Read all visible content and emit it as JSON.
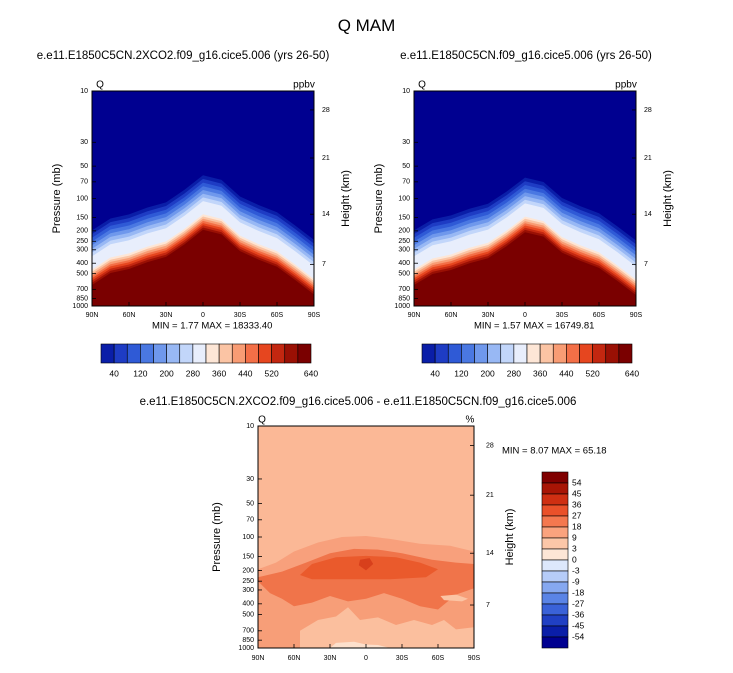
{
  "figure": {
    "title": "Q MAM"
  },
  "colors": {
    "background": "#ffffff",
    "abs_scale": [
      "#000090",
      "#0a1ea8",
      "#1e3cc4",
      "#2f5ad6",
      "#4a78e2",
      "#6f98ec",
      "#98b8f4",
      "#c2d6fa",
      "#e8eefc",
      "#fde6d6",
      "#fbc4a4",
      "#f89c74",
      "#f36f47",
      "#e6461f",
      "#c32710",
      "#9a1004",
      "#7a0000"
    ],
    "diff_scale": [
      "#000090",
      "#0a1ea8",
      "#2040c4",
      "#3a62d8",
      "#5a84e6",
      "#86a8f0",
      "#b6ccf8",
      "#dde8fc",
      "#fde6d6",
      "#fcc7a8",
      "#faa37e",
      "#f4784f",
      "#ea512a",
      "#cf2f12",
      "#a81505",
      "#800000"
    ]
  },
  "chart_data": [
    {
      "type": "heatmap",
      "name": "left-panel",
      "subtitle": "e.e11.E1850C5CN.2XCO2.f09_g16.cice5.006 (yrs 26-50)",
      "corner_left": "Q",
      "corner_right": "ppbv",
      "ylabel": "Pressure (mb)",
      "y2label": "Height (km)",
      "x_ticks": [
        "90N",
        "60N",
        "30N",
        "0",
        "30S",
        "60S",
        "90S"
      ],
      "y_ticks": [
        "10",
        "30",
        "50",
        "70",
        "100",
        "150",
        "200",
        "250",
        "300",
        "400",
        "500",
        "700",
        "850",
        "1000"
      ],
      "y2_ticks": [
        "28",
        "21",
        "14",
        "7"
      ],
      "stats": {
        "min_label": "MIN =",
        "min": "1.77",
        "max_label": "MAX =",
        "max": "18333.40"
      },
      "colorbar_ticks": [
        "40",
        "120",
        "200",
        "280",
        "360",
        "440",
        "520",
        "640"
      ],
      "levels": [
        40,
        80,
        120,
        160,
        200,
        240,
        280,
        320,
        360,
        400,
        440,
        480,
        520,
        560,
        600,
        640
      ],
      "tropopause_mb": [
        [
          90,
          620
        ],
        [
          75,
          480
        ],
        [
          60,
          440
        ],
        [
          45,
          380
        ],
        [
          30,
          340
        ],
        [
          15,
          260
        ],
        [
          0,
          190
        ],
        [
          -15,
          210
        ],
        [
          -30,
          300
        ],
        [
          -45,
          360
        ],
        [
          -60,
          420
        ],
        [
          -75,
          560
        ],
        [
          -90,
          760
        ]
      ]
    },
    {
      "type": "heatmap",
      "name": "right-panel",
      "subtitle": "e.e11.E1850C5CN.f09_g16.cice5.006 (yrs 26-50)",
      "corner_left": "Q",
      "corner_right": "ppbv",
      "ylabel": "Pressure (mb)",
      "y2label": "Height (km)",
      "x_ticks": [
        "90N",
        "60N",
        "30N",
        "0",
        "30S",
        "60S",
        "90S"
      ],
      "y_ticks": [
        "10",
        "30",
        "50",
        "70",
        "100",
        "150",
        "200",
        "250",
        "300",
        "400",
        "500",
        "700",
        "850",
        "1000"
      ],
      "y2_ticks": [
        "28",
        "21",
        "14",
        "7"
      ],
      "stats": {
        "min_label": "MIN =",
        "min": "1.57",
        "max_label": "MAX =",
        "max": "16749.81"
      },
      "colorbar_ticks": [
        "40",
        "120",
        "200",
        "280",
        "360",
        "440",
        "520",
        "640"
      ],
      "levels": [
        40,
        80,
        120,
        160,
        200,
        240,
        280,
        320,
        360,
        400,
        440,
        480,
        520,
        560,
        600,
        640
      ],
      "tropopause_mb": [
        [
          90,
          620
        ],
        [
          75,
          490
        ],
        [
          60,
          450
        ],
        [
          45,
          390
        ],
        [
          30,
          350
        ],
        [
          15,
          270
        ],
        [
          0,
          200
        ],
        [
          -15,
          220
        ],
        [
          -30,
          310
        ],
        [
          -45,
          370
        ],
        [
          -60,
          430
        ],
        [
          -75,
          570
        ],
        [
          -90,
          770
        ]
      ]
    },
    {
      "type": "heatmap",
      "name": "difference-panel",
      "subtitle": "e.e11.E1850C5CN.2XCO2.f09_g16.cice5.006 - e.e11.E1850C5CN.f09_g16.cice5.006",
      "corner_left": "Q",
      "corner_right": "%",
      "ylabel": "Pressure (mb)",
      "y2label": "Height (km)",
      "x_ticks": [
        "90N",
        "60N",
        "30N",
        "0",
        "30S",
        "60S",
        "90S"
      ],
      "y_ticks": [
        "10",
        "30",
        "50",
        "70",
        "100",
        "150",
        "200",
        "250",
        "300",
        "400",
        "500",
        "700",
        "850",
        "1000"
      ],
      "y2_ticks": [
        "28",
        "21",
        "14",
        "7"
      ],
      "stats": {
        "min_label": "MIN =",
        "min": "8.07",
        "max_label": "MAX =",
        "max": "65.18"
      },
      "colorbar_ticks": [
        "54",
        "45",
        "36",
        "27",
        "18",
        "9",
        "3",
        "0",
        "-3",
        "-9",
        "-18",
        "-27",
        "-36",
        "-45",
        "-54"
      ]
    }
  ]
}
